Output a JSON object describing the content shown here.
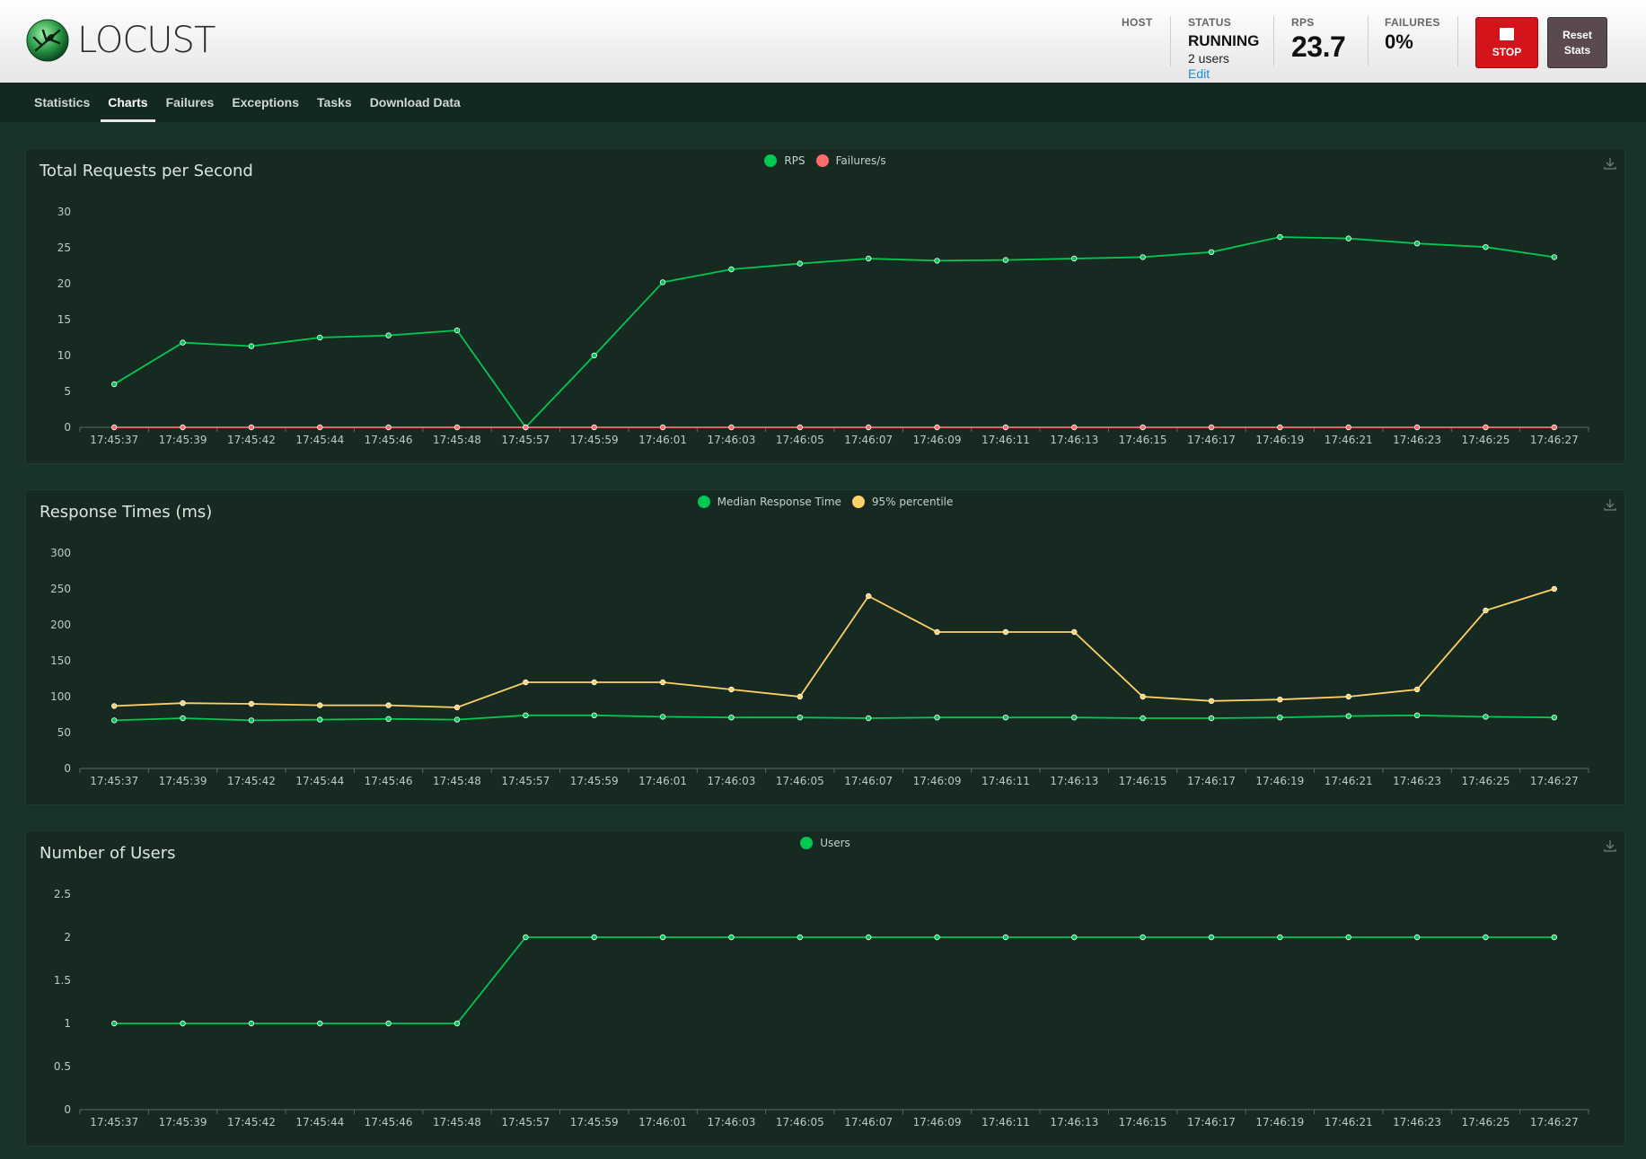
{
  "header": {
    "logo_text": "LOCUST",
    "host_label": "HOST",
    "status_label": "STATUS",
    "status_value": "RUNNING",
    "users_text": "2 users",
    "edit_label": "Edit",
    "rps_label": "RPS",
    "rps_value": "23.7",
    "failures_label": "FAILURES",
    "failures_value": "0%",
    "stop_label": "STOP",
    "reset_label": "Reset Stats"
  },
  "nav": {
    "tabs": [
      "Statistics",
      "Charts",
      "Failures",
      "Exceptions",
      "Tasks",
      "Download Data"
    ],
    "active": "Charts"
  },
  "colors": {
    "green": "#00c853",
    "red": "#ff6b6b",
    "yellow": "#ffd166"
  },
  "chart_data": [
    {
      "type": "line",
      "title": "Total Requests per Second",
      "x": [
        "17:45:37",
        "17:45:39",
        "17:45:42",
        "17:45:44",
        "17:45:46",
        "17:45:48",
        "17:45:57",
        "17:45:59",
        "17:46:01",
        "17:46:03",
        "17:46:05",
        "17:46:07",
        "17:46:09",
        "17:46:11",
        "17:46:13",
        "17:46:15",
        "17:46:17",
        "17:46:19",
        "17:46:21",
        "17:46:23",
        "17:46:25",
        "17:46:27"
      ],
      "yticks": [
        "30",
        "25",
        "20",
        "15",
        "10",
        "5",
        "0"
      ],
      "ylim": [
        0,
        30
      ],
      "series": [
        {
          "name": "RPS",
          "color": "#00c853",
          "values": [
            6,
            11.8,
            11.3,
            12.5,
            12.8,
            13.5,
            0,
            10,
            20.2,
            22,
            22.8,
            23.5,
            23.2,
            23.3,
            23.5,
            23.7,
            24.4,
            26.5,
            26.3,
            25.6,
            25.1,
            23.7
          ]
        },
        {
          "name": "Failures/s",
          "color": "#ff6b6b",
          "values": [
            0,
            0,
            0,
            0,
            0,
            0,
            0,
            0,
            0,
            0,
            0,
            0,
            0,
            0,
            0,
            0,
            0,
            0,
            0,
            0,
            0,
            0
          ]
        }
      ]
    },
    {
      "type": "line",
      "title": "Response Times (ms)",
      "x": [
        "17:45:37",
        "17:45:39",
        "17:45:42",
        "17:45:44",
        "17:45:46",
        "17:45:48",
        "17:45:57",
        "17:45:59",
        "17:46:01",
        "17:46:03",
        "17:46:05",
        "17:46:07",
        "17:46:09",
        "17:46:11",
        "17:46:13",
        "17:46:15",
        "17:46:17",
        "17:46:19",
        "17:46:21",
        "17:46:23",
        "17:46:25",
        "17:46:27"
      ],
      "yticks": [
        "300",
        "250",
        "200",
        "150",
        "100",
        "50",
        "0"
      ],
      "ylim": [
        0,
        300
      ],
      "series": [
        {
          "name": "Median Response Time",
          "color": "#00c853",
          "values": [
            67,
            70,
            67,
            68,
            69,
            68,
            74,
            74,
            72,
            71,
            71,
            70,
            71,
            71,
            71,
            70,
            70,
            71,
            73,
            74,
            72,
            71
          ]
        },
        {
          "name": "95% percentile",
          "color": "#ffd166",
          "values": [
            87,
            91,
            90,
            88,
            88,
            85,
            120,
            120,
            120,
            110,
            100,
            240,
            190,
            190,
            190,
            100,
            94,
            96,
            100,
            110,
            220,
            250
          ]
        }
      ]
    },
    {
      "type": "line",
      "title": "Number of Users",
      "x": [
        "17:45:37",
        "17:45:39",
        "17:45:42",
        "17:45:44",
        "17:45:46",
        "17:45:48",
        "17:45:57",
        "17:45:59",
        "17:46:01",
        "17:46:03",
        "17:46:05",
        "17:46:07",
        "17:46:09",
        "17:46:11",
        "17:46:13",
        "17:46:15",
        "17:46:17",
        "17:46:19",
        "17:46:21",
        "17:46:23",
        "17:46:25",
        "17:46:27"
      ],
      "yticks": [
        "2.5",
        "2",
        "1.5",
        "1",
        "0.5",
        "0"
      ],
      "ylim": [
        0,
        2.5
      ],
      "series": [
        {
          "name": "Users",
          "color": "#00c853",
          "values": [
            1,
            1,
            1,
            1,
            1,
            1,
            2,
            2,
            2,
            2,
            2,
            2,
            2,
            2,
            2,
            2,
            2,
            2,
            2,
            2,
            2,
            2
          ]
        }
      ]
    }
  ]
}
